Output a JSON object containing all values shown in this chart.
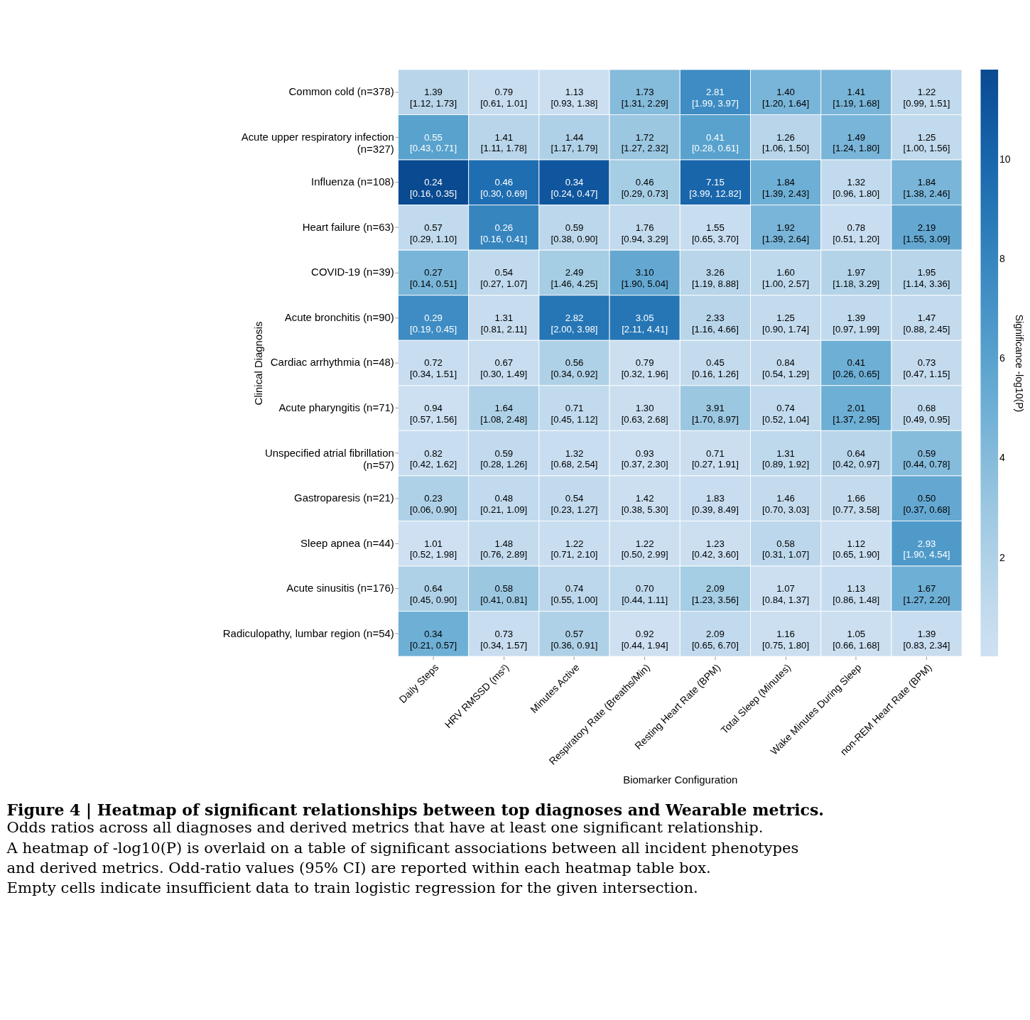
{
  "chart_data": {
    "type": "heatmap",
    "title": "Figure 4 | Heatmap of significant relationships between top diagnoses and Wearable metrics.",
    "annotations": [
      "Odds ratios across all diagnoses and derived metrics that have at least one significant relationship.",
      "A heatmap of -log10(P) is overlaid on a table of significant associations between all incident phenotypes",
      "and derived metrics. Odd-ratio values (95% CI) are reported within each heatmap table box.",
      "Empty cells indicate insufficient data to train logistic regression for the given intersection."
    ],
    "xlabel": "Biomarker Configuration",
    "ylabel": "Clinical Diagnosis",
    "clabel": "Significance -log10(P)",
    "categories": [
      "Daily Steps",
      "HRV RMSSD (ms²)",
      "Minutes Active",
      "Respiratory Rate (Breaths/Min)",
      "Resting Heart Rate (BPM)",
      "Total Sleep (Minutes)",
      "Wake Minutes During Sleep",
      "non-REM Heart Rate (BPM)"
    ],
    "y_categories": [
      "Common cold (n=378)",
      "Acute upper respiratory infection\n(n=327)",
      "Influenza (n=108)",
      "Heart failure (n=63)",
      "COVID-19 (n=39)",
      "Acute bronchitis (n=90)",
      "Cardiac arrhythmia (n=48)",
      "Acute pharyngitis (n=71)",
      "Unspecified atrial fibrillation\n(n=57)",
      "Gastroparesis (n=21)",
      "Sleep apnea (n=44)",
      "Acute sinusitis (n=176)",
      "Radiculopathy, lumbar region (n=54)"
    ],
    "cells": [
      [
        1.5,
        0.5,
        0.3,
        4,
        7.5,
        4.5,
        4.5,
        1
      ],
      [
        6,
        1.5,
        2,
        3,
        6,
        1.5,
        4.5,
        1
      ],
      [
        11.8,
        9.5,
        11,
        2.5,
        10,
        5,
        1,
        4.5
      ],
      [
        1,
        8,
        1.3,
        1,
        0.5,
        4.5,
        0.5,
        5.5
      ],
      [
        4.5,
        1,
        2.5,
        5.5,
        1.5,
        1.2,
        1.8,
        1.5
      ],
      [
        7.5,
        0.6,
        9,
        9,
        1.5,
        0.8,
        1,
        0.8
      ],
      [
        0.5,
        0.5,
        2,
        0.3,
        0.8,
        0.8,
        5,
        0.8
      ],
      [
        0.2,
        2,
        1,
        0.4,
        3,
        1,
        5,
        1
      ],
      [
        0.5,
        1,
        0.5,
        0.2,
        0.4,
        1.2,
        1.5,
        4
      ],
      [
        2,
        1,
        1,
        0.3,
        0.5,
        0.8,
        0.8,
        5.5
      ],
      [
        0.1,
        0.8,
        0.5,
        0.3,
        0.3,
        1.3,
        0.3,
        6.5
      ],
      [
        2,
        3,
        1.3,
        1.2,
        2.5,
        0.3,
        0.6,
        5
      ],
      [
        5,
        0.5,
        2,
        0.1,
        1,
        0.3,
        0.3,
        0.5
      ]
    ],
    "cell_labels": [
      [
        "1.39\n[1.12, 1.73]",
        "0.79\n[0.61, 1.01]",
        "1.13\n[0.93, 1.38]",
        "1.73\n[1.31, 2.29]",
        "2.81\n[1.99, 3.97]",
        "1.40\n[1.20, 1.64]",
        "1.41\n[1.19, 1.68]",
        "1.22\n[0.99, 1.51]"
      ],
      [
        "0.55\n[0.43, 0.71]",
        "1.41\n[1.11, 1.78]",
        "1.44\n[1.17, 1.79]",
        "1.72\n[1.27, 2.32]",
        "0.41\n[0.28, 0.61]",
        "1.26\n[1.06, 1.50]",
        "1.49\n[1.24, 1.80]",
        "1.25\n[1.00, 1.56]"
      ],
      [
        "0.24\n[0.16, 0.35]",
        "0.46\n[0.30, 0.69]",
        "0.34\n[0.24, 0.47]",
        "0.46\n[0.29, 0.73]",
        "7.15\n[3.99, 12.82]",
        "1.84\n[1.39, 2.43]",
        "1.32\n[0.96, 1.80]",
        "1.84\n[1.38, 2.46]"
      ],
      [
        "0.57\n[0.29, 1.10]",
        "0.26\n[0.16, 0.41]",
        "0.59\n[0.38, 0.90]",
        "1.76\n[0.94, 3.29]",
        "1.55\n[0.65, 3.70]",
        "1.92\n[1.39, 2.64]",
        "0.78\n[0.51, 1.20]",
        "2.19\n[1.55, 3.09]"
      ],
      [
        "0.27\n[0.14, 0.51]",
        "0.54\n[0.27, 1.07]",
        "2.49\n[1.46, 4.25]",
        "3.10\n[1.90, 5.04]",
        "3.26\n[1.19, 8.88]",
        "1.60\n[1.00, 2.57]",
        "1.97\n[1.18, 3.29]",
        "1.95\n[1.14, 3.36]"
      ],
      [
        "0.29\n[0.19, 0.45]",
        "1.31\n[0.81, 2.11]",
        "2.82\n[2.00, 3.98]",
        "3.05\n[2.11, 4.41]",
        "2.33\n[1.16, 4.66]",
        "1.25\n[0.90, 1.74]",
        "1.39\n[0.97, 1.99]",
        "1.47\n[0.88, 2.45]"
      ],
      [
        "0.72\n[0.34, 1.51]",
        "0.67\n[0.30, 1.49]",
        "0.56\n[0.34, 0.92]",
        "0.79\n[0.32, 1.96]",
        "0.45\n[0.16, 1.26]",
        "0.84\n[0.54, 1.29]",
        "0.41\n[0.26, 0.65]",
        "0.73\n[0.47, 1.15]"
      ],
      [
        "0.94\n[0.57, 1.56]",
        "1.64\n[1.08, 2.48]",
        "0.71\n[0.45, 1.12]",
        "1.30\n[0.63, 2.68]",
        "3.91\n[1.70, 8.97]",
        "0.74\n[0.52, 1.04]",
        "2.01\n[1.37, 2.95]",
        "0.68\n[0.49, 0.95]"
      ],
      [
        "0.82\n[0.42, 1.62]",
        "0.59\n[0.28, 1.26]",
        "1.32\n[0.68, 2.54]",
        "0.93\n[0.37, 2.30]",
        "0.71\n[0.27, 1.91]",
        "1.31\n[0.89, 1.92]",
        "0.64\n[0.42, 0.97]",
        "0.59\n[0.44, 0.78]"
      ],
      [
        "0.23\n[0.06, 0.90]",
        "0.48\n[0.21, 1.09]",
        "0.54\n[0.23, 1.27]",
        "1.42\n[0.38, 5.30]",
        "1.83\n[0.39, 8.49]",
        "1.46\n[0.70, 3.03]",
        "1.66\n[0.77, 3.58]",
        "0.50\n[0.37, 0.68]"
      ],
      [
        "1.01\n[0.52, 1.98]",
        "1.48\n[0.76, 2.89]",
        "1.22\n[0.71, 2.10]",
        "1.22\n[0.50, 2.99]",
        "1.23\n[0.42, 3.60]",
        "0.58\n[0.31, 1.07]",
        "1.12\n[0.65, 1.90]",
        "2.93\n[1.90, 4.54]"
      ],
      [
        "0.64\n[0.45, 0.90]",
        "0.58\n[0.41, 0.81]",
        "0.74\n[0.55, 1.00]",
        "0.70\n[0.44, 1.11]",
        "2.09\n[1.23, 3.56]",
        "1.07\n[0.84, 1.37]",
        "1.13\n[0.86, 1.48]",
        "1.67\n[1.27, 2.20]"
      ],
      [
        "0.34\n[0.21, 0.57]",
        "0.73\n[0.34, 1.57]",
        "0.57\n[0.36, 0.91]",
        "0.92\n[0.44, 1.94]",
        "2.09\n[0.65, 6.70]",
        "1.16\n[0.75, 1.80]",
        "1.05\n[0.66, 1.68]",
        "1.39\n[0.83, 2.34]"
      ]
    ],
    "clim": [
      0.02,
      11.8
    ],
    "cticks": [
      2,
      4,
      6,
      8,
      10
    ]
  }
}
